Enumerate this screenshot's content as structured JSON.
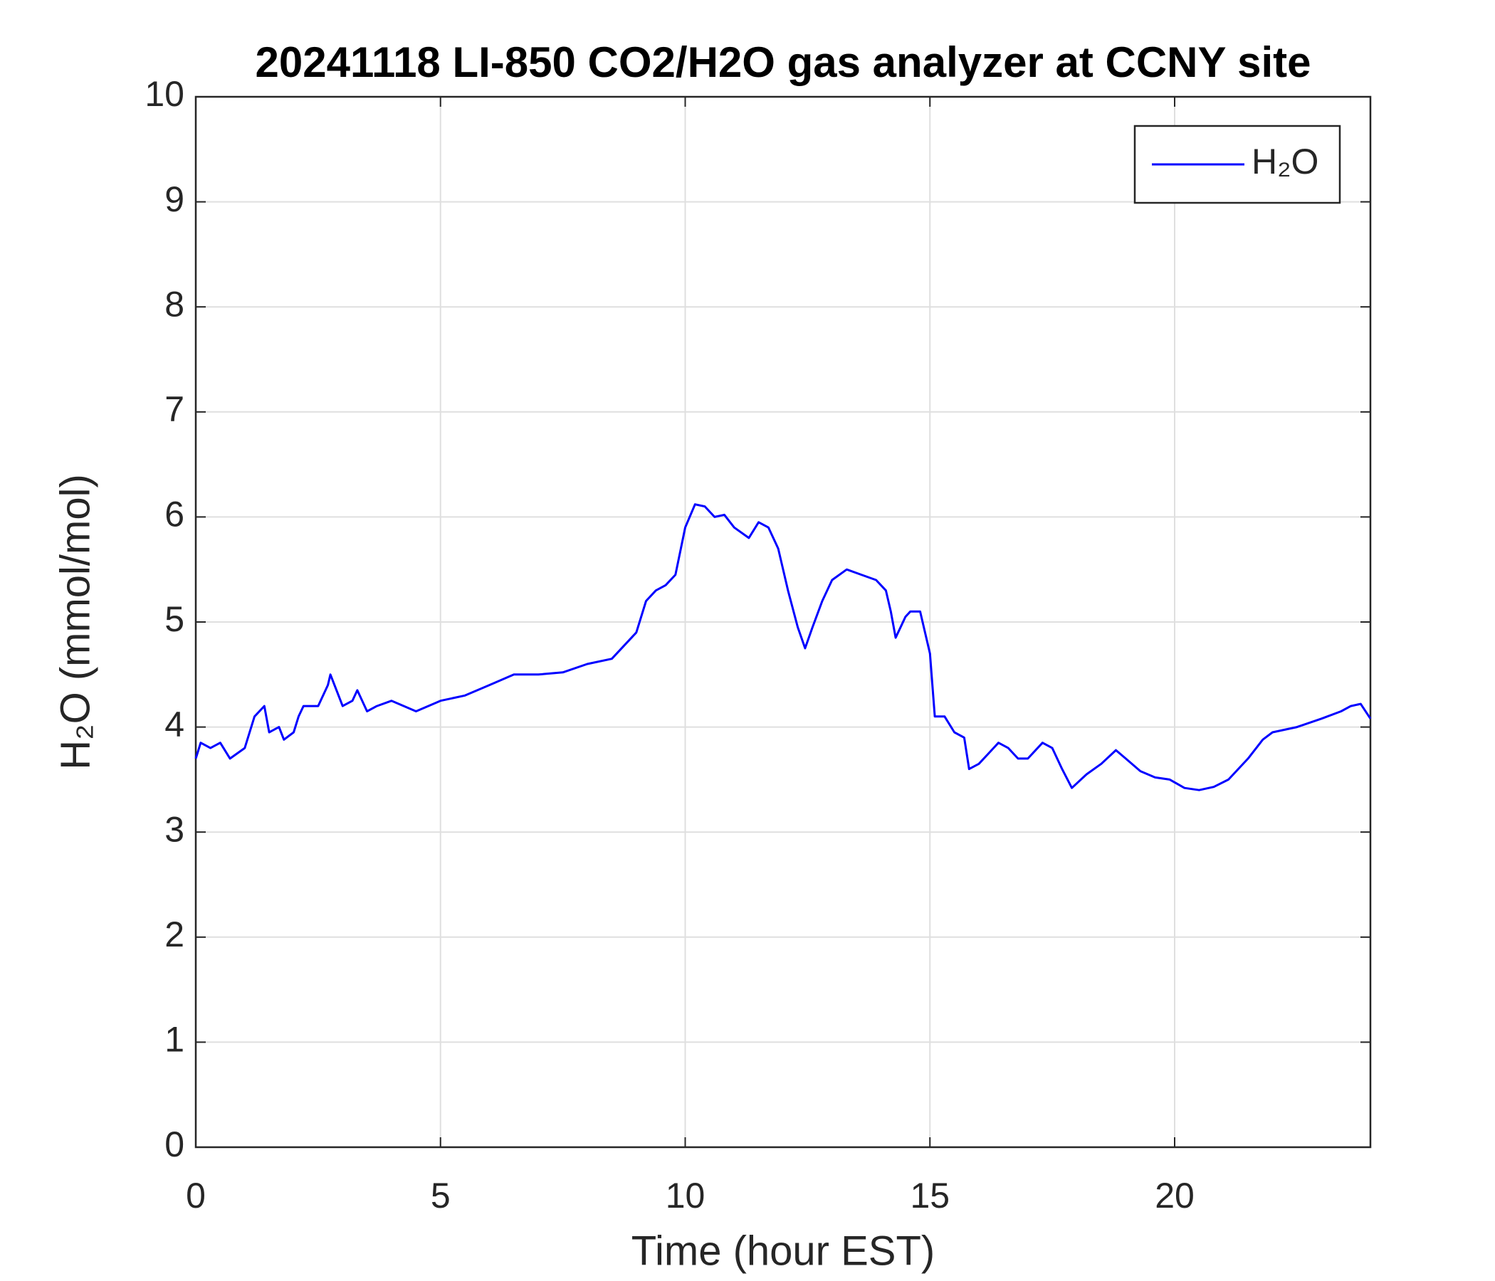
{
  "chart_data": {
    "type": "line",
    "title": "20241118 LI-850 CO2/H2O gas analyzer at CCNY site",
    "x_label": "Time (hour EST)",
    "y_label": "H₂O (mmol/mol)",
    "x": [
      0,
      0.1,
      0.3,
      0.5,
      0.7,
      1.0,
      1.2,
      1.4,
      1.5,
      1.7,
      1.8,
      2.0,
      2.1,
      2.2,
      2.5,
      2.7,
      2.75,
      3.0,
      3.2,
      3.3,
      3.5,
      3.7,
      4.0,
      4.5,
      5.0,
      5.5,
      6.0,
      6.5,
      7.0,
      7.5,
      8.0,
      8.5,
      9.0,
      9.2,
      9.4,
      9.6,
      9.8,
      10.0,
      10.2,
      10.4,
      10.6,
      10.8,
      11.0,
      11.3,
      11.5,
      11.7,
      11.9,
      12.1,
      12.3,
      12.45,
      12.6,
      12.8,
      13.0,
      13.3,
      13.6,
      13.9,
      14.1,
      14.2,
      14.3,
      14.5,
      14.6,
      14.8,
      15.0,
      15.1,
      15.3,
      15.5,
      15.7,
      15.8,
      16.0,
      16.2,
      16.4,
      16.6,
      16.8,
      17.0,
      17.3,
      17.5,
      17.7,
      17.9,
      18.2,
      18.5,
      18.8,
      19.0,
      19.3,
      19.6,
      19.9,
      20.2,
      20.5,
      20.8,
      21.1,
      21.5,
      21.8,
      22.0,
      22.5,
      23.0,
      23.4,
      23.6,
      23.8,
      24.0
    ],
    "series": [
      {
        "name": "H₂O",
        "color": "#0000ff",
        "values": [
          3.7,
          3.85,
          3.8,
          3.85,
          3.7,
          3.8,
          4.1,
          4.2,
          3.95,
          4.0,
          3.88,
          3.95,
          4.1,
          4.2,
          4.2,
          4.4,
          4.5,
          4.2,
          4.25,
          4.35,
          4.15,
          4.2,
          4.25,
          4.15,
          4.25,
          4.3,
          4.4,
          4.5,
          4.5,
          4.52,
          4.6,
          4.65,
          4.9,
          5.2,
          5.3,
          5.35,
          5.45,
          5.9,
          6.12,
          6.1,
          6.0,
          6.02,
          5.9,
          5.8,
          5.95,
          5.9,
          5.7,
          5.3,
          4.95,
          4.75,
          4.95,
          5.2,
          5.4,
          5.5,
          5.45,
          5.4,
          5.3,
          5.1,
          4.85,
          5.05,
          5.1,
          5.1,
          4.7,
          4.1,
          4.1,
          3.95,
          3.9,
          3.6,
          3.65,
          3.75,
          3.85,
          3.8,
          3.7,
          3.7,
          3.85,
          3.8,
          3.6,
          3.42,
          3.55,
          3.65,
          3.78,
          3.7,
          3.58,
          3.52,
          3.5,
          3.42,
          3.4,
          3.43,
          3.5,
          3.7,
          3.88,
          3.95,
          4.0,
          4.08,
          4.15,
          4.2,
          4.22,
          4.08
        ]
      }
    ],
    "xlim": [
      0,
      24
    ],
    "xticks": [
      0,
      5,
      10,
      15,
      20
    ],
    "ylim": [
      0,
      10
    ],
    "yticks": [
      0,
      1,
      2,
      3,
      4,
      5,
      6,
      7,
      8,
      9,
      10
    ],
    "grid": true,
    "legend": "northeast"
  }
}
